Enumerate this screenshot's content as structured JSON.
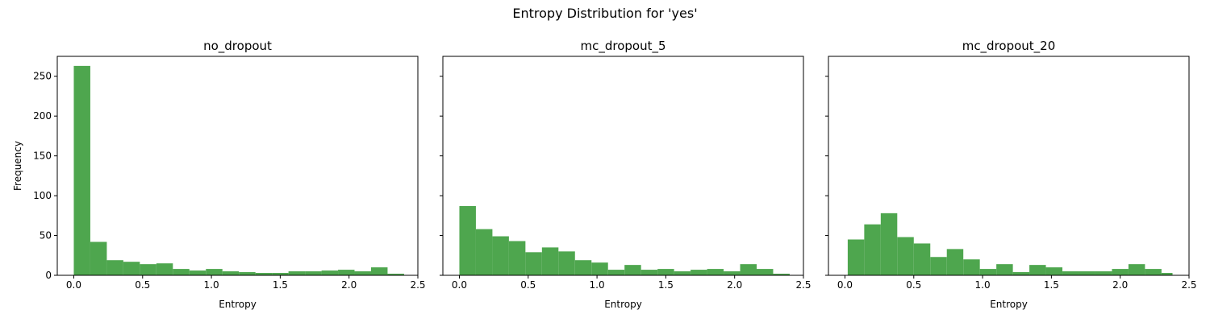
{
  "figure": {
    "title": "Entropy Distribution for 'yes'"
  },
  "colors": {
    "bar": "#4ea64e",
    "axes": "#000000"
  },
  "chart_data": [
    {
      "type": "bar",
      "title": "no_dropout",
      "xlabel": "Entropy",
      "ylabel": "Frequency",
      "xlim": [
        -0.12,
        2.5
      ],
      "ylim": [
        0,
        275
      ],
      "xticks": [
        0.0,
        0.5,
        1.0,
        1.5,
        2.0,
        2.5
      ],
      "xtick_labels": [
        "0.0",
        "0.5",
        "1.0",
        "1.5",
        "2.0",
        "2.5"
      ],
      "yticks": [
        0,
        50,
        100,
        150,
        200,
        250
      ],
      "ytick_labels": [
        "0",
        "50",
        "100",
        "150",
        "200",
        "250"
      ],
      "bin_edges": [
        0.0,
        0.12,
        0.24,
        0.36,
        0.48,
        0.6,
        0.72,
        0.84,
        0.96,
        1.08,
        1.2,
        1.32,
        1.44,
        1.56,
        1.68,
        1.8,
        1.92,
        2.04,
        2.16,
        2.28,
        2.4
      ],
      "values": [
        263,
        42,
        19,
        17,
        14,
        15,
        8,
        6,
        8,
        5,
        4,
        3,
        3,
        5,
        5,
        6,
        7,
        5,
        10,
        2
      ]
    },
    {
      "type": "bar",
      "title": "mc_dropout_5",
      "xlabel": "Entropy",
      "ylabel": "",
      "xlim": [
        -0.12,
        2.5
      ],
      "ylim": [
        0,
        275
      ],
      "xticks": [
        0.0,
        0.5,
        1.0,
        1.5,
        2.0,
        2.5
      ],
      "xtick_labels": [
        "0.0",
        "0.5",
        "1.0",
        "1.5",
        "2.0",
        "2.5"
      ],
      "yticks": [
        0,
        50,
        100,
        150,
        200,
        250
      ],
      "ytick_labels": [],
      "bin_edges": [
        0.0,
        0.12,
        0.24,
        0.36,
        0.48,
        0.6,
        0.72,
        0.84,
        0.96,
        1.08,
        1.2,
        1.32,
        1.44,
        1.56,
        1.68,
        1.8,
        1.92,
        2.04,
        2.16,
        2.28,
        2.4
      ],
      "values": [
        87,
        58,
        49,
        43,
        29,
        35,
        30,
        19,
        16,
        7,
        13,
        7,
        8,
        5,
        7,
        8,
        5,
        14,
        8,
        2
      ]
    },
    {
      "type": "bar",
      "title": "mc_dropout_20",
      "xlabel": "Entropy",
      "ylabel": "",
      "xlim": [
        -0.12,
        2.5
      ],
      "ylim": [
        0,
        275
      ],
      "xticks": [
        0.0,
        0.5,
        1.0,
        1.5,
        2.0,
        2.5
      ],
      "xtick_labels": [
        "0.0",
        "0.5",
        "1.0",
        "1.5",
        "2.0",
        "2.5"
      ],
      "yticks": [
        0,
        50,
        100,
        150,
        200,
        250
      ],
      "ytick_labels": [],
      "bin_edges": [
        0.02,
        0.14,
        0.26,
        0.38,
        0.5,
        0.62,
        0.74,
        0.86,
        0.98,
        1.1,
        1.22,
        1.34,
        1.46,
        1.58,
        1.7,
        1.82,
        1.94,
        2.06,
        2.18,
        2.3,
        2.38
      ],
      "values": [
        45,
        64,
        78,
        48,
        40,
        23,
        33,
        20,
        8,
        14,
        4,
        13,
        10,
        5,
        5,
        5,
        8,
        14,
        8,
        3
      ]
    }
  ]
}
